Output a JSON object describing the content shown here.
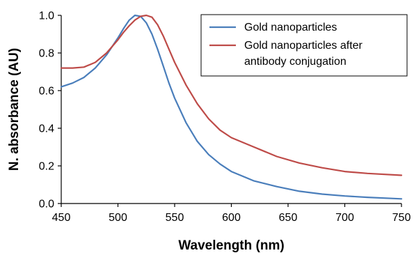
{
  "chart_data": {
    "type": "line",
    "title": "",
    "xlabel": "Wavelength (nm)",
    "ylabel": "N. absorbance (AU)",
    "xlim": [
      450,
      750
    ],
    "ylim": [
      0.0,
      1.0
    ],
    "x_ticks": [
      "450",
      "500",
      "550",
      "600",
      "650",
      "700",
      "750"
    ],
    "y_ticks": [
      "0.0",
      "0.2",
      "0.4",
      "0.6",
      "0.8",
      "1.0"
    ],
    "grid": false,
    "legend_position": "top-right",
    "series": [
      {
        "name": "Gold nanoparticles",
        "color": "#4a7ebb",
        "x": [
          450,
          460,
          470,
          480,
          490,
          500,
          505,
          510,
          515,
          520,
          525,
          530,
          535,
          540,
          545,
          550,
          560,
          570,
          580,
          590,
          600,
          620,
          640,
          660,
          680,
          700,
          720,
          750
        ],
        "y": [
          0.62,
          0.64,
          0.67,
          0.72,
          0.79,
          0.88,
          0.93,
          0.975,
          1.0,
          0.995,
          0.96,
          0.9,
          0.82,
          0.73,
          0.64,
          0.56,
          0.43,
          0.33,
          0.26,
          0.21,
          0.17,
          0.12,
          0.09,
          0.065,
          0.05,
          0.04,
          0.033,
          0.025
        ]
      },
      {
        "name": "Gold nanoparticles after",
        "name_line2": "antibody conjugation",
        "color": "#be4b48",
        "x": [
          450,
          460,
          470,
          480,
          490,
          500,
          505,
          510,
          515,
          520,
          525,
          530,
          535,
          540,
          545,
          550,
          560,
          570,
          580,
          590,
          600,
          620,
          640,
          660,
          680,
          700,
          720,
          750
        ],
        "y": [
          0.72,
          0.72,
          0.725,
          0.75,
          0.8,
          0.87,
          0.91,
          0.945,
          0.975,
          0.995,
          1.0,
          0.99,
          0.95,
          0.89,
          0.82,
          0.75,
          0.63,
          0.53,
          0.45,
          0.39,
          0.35,
          0.3,
          0.25,
          0.215,
          0.19,
          0.17,
          0.16,
          0.15
        ]
      }
    ]
  }
}
